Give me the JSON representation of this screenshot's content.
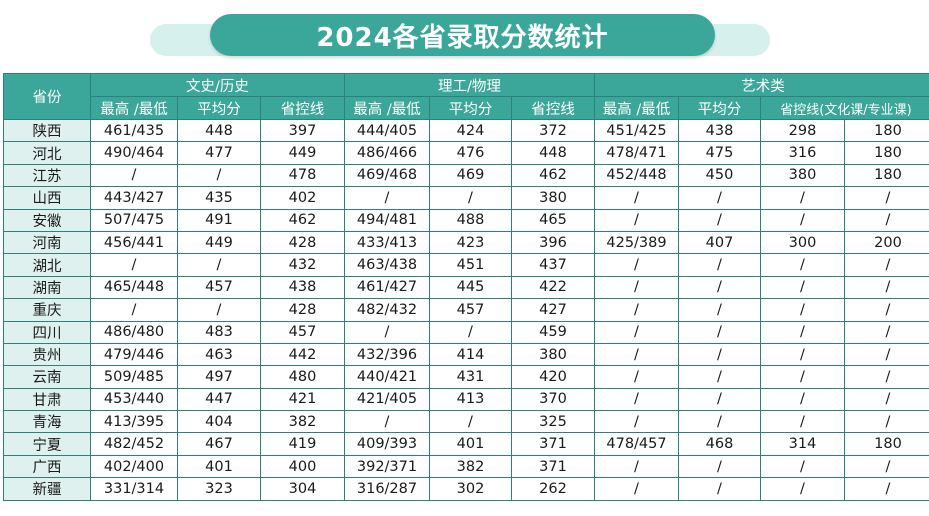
{
  "title": "2024各省录取分数统计",
  "header": {
    "province": "省份",
    "groups": [
      "文史/历史",
      "理工/物理",
      "艺术类"
    ],
    "sub": {
      "wenshi": [
        "最高 /最低",
        "平均分",
        "省控线"
      ],
      "ligong": [
        "最高 /最低",
        "平均分",
        "省控线"
      ],
      "yishu": [
        "最高 /最低",
        "平均分",
        "省控线(文化课/专业课)"
      ]
    }
  },
  "rows": [
    {
      "province": "陕西",
      "cells": [
        "461/435",
        "448",
        "397",
        "444/405",
        "424",
        "372",
        "451/425",
        "438",
        "298",
        "180"
      ]
    },
    {
      "province": "河北",
      "cells": [
        "490/464",
        "477",
        "449",
        "486/466",
        "476",
        "448",
        "478/471",
        "475",
        "316",
        "180"
      ]
    },
    {
      "province": "江苏",
      "cells": [
        "/",
        "/",
        "478",
        "469/468",
        "469",
        "462",
        "452/448",
        "450",
        "380",
        "180"
      ]
    },
    {
      "province": "山西",
      "cells": [
        "443/427",
        "435",
        "402",
        "/",
        "/",
        "380",
        "/",
        "/",
        "/",
        "/"
      ]
    },
    {
      "province": "安徽",
      "cells": [
        "507/475",
        "491",
        "462",
        "494/481",
        "488",
        "465",
        "/",
        "/",
        "/",
        "/"
      ]
    },
    {
      "province": "河南",
      "cells": [
        "456/441",
        "449",
        "428",
        "433/413",
        "423",
        "396",
        "425/389",
        "407",
        "300",
        "200"
      ]
    },
    {
      "province": "湖北",
      "cells": [
        "/",
        "/",
        "432",
        "463/438",
        "451",
        "437",
        "/",
        "/",
        "/",
        "/"
      ]
    },
    {
      "province": "湖南",
      "cells": [
        "465/448",
        "457",
        "438",
        "461/427",
        "445",
        "422",
        "/",
        "/",
        "/",
        "/"
      ]
    },
    {
      "province": "重庆",
      "cells": [
        "/",
        "/",
        "428",
        "482/432",
        "457",
        "427",
        "/",
        "/",
        "/",
        "/"
      ]
    },
    {
      "province": "四川",
      "cells": [
        "486/480",
        "483",
        "457",
        "/",
        "/",
        "459",
        "/",
        "/",
        "/",
        "/"
      ]
    },
    {
      "province": "贵州",
      "cells": [
        "479/446",
        "463",
        "442",
        "432/396",
        "414",
        "380",
        "/",
        "/",
        "/",
        "/"
      ]
    },
    {
      "province": "云南",
      "cells": [
        "509/485",
        "497",
        "480",
        "440/421",
        "431",
        "420",
        "/",
        "/",
        "/",
        "/"
      ]
    },
    {
      "province": "甘肃",
      "cells": [
        "453/440",
        "447",
        "421",
        "421/405",
        "413",
        "370",
        "/",
        "/",
        "/",
        "/"
      ]
    },
    {
      "province": "青海",
      "cells": [
        "413/395",
        "404",
        "382",
        "/",
        "/",
        "325",
        "/",
        "/",
        "/",
        "/"
      ]
    },
    {
      "province": "宁夏",
      "cells": [
        "482/452",
        "467",
        "419",
        "409/393",
        "401",
        "371",
        "478/457",
        "468",
        "314",
        "180"
      ]
    },
    {
      "province": "广西",
      "cells": [
        "402/400",
        "401",
        "400",
        "392/371",
        "382",
        "371",
        "/",
        "/",
        "/",
        "/"
      ]
    },
    {
      "province": "新疆",
      "cells": [
        "331/314",
        "323",
        "304",
        "316/287",
        "302",
        "262",
        "/",
        "/",
        "/",
        "/"
      ]
    }
  ],
  "colors": {
    "header_teal": "#3aa79a",
    "province_cell_bg": "#dff1ef",
    "title_band": "#d6f0ee",
    "border": "#2f7f7a"
  }
}
